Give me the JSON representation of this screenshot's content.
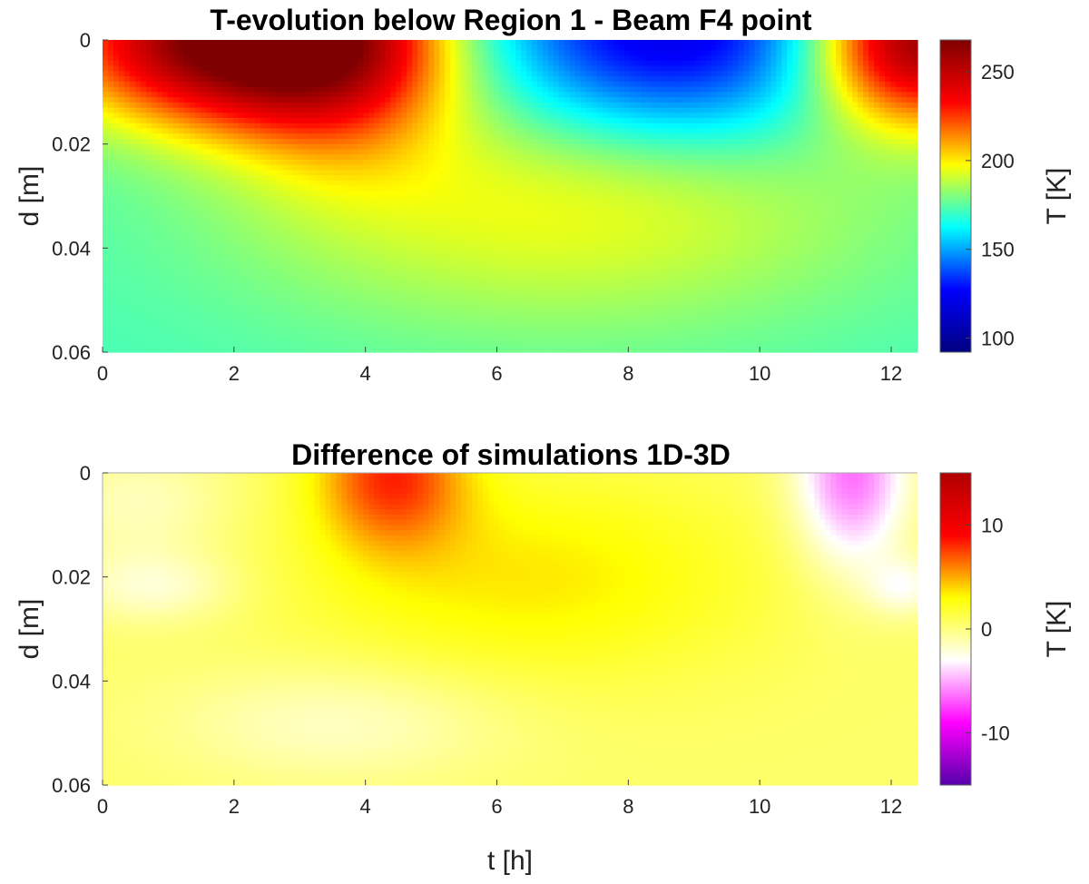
{
  "chart_data": [
    {
      "type": "heatmap",
      "title": "T-evolution below Region 1 - Beam F4 point",
      "xlabel": "",
      "ylabel": "d [m]",
      "colorbar_label": "T [K]",
      "xlim": [
        0,
        12.4
      ],
      "ylim": [
        0,
        0.06
      ],
      "y_reversed": true,
      "x_ticks": [
        0,
        2,
        4,
        6,
        8,
        10,
        12
      ],
      "x_tick_labels": [
        "0",
        "2",
        "4",
        "6",
        "8",
        "10",
        "12"
      ],
      "y_ticks": [
        0,
        0.02,
        0.04,
        0.06
      ],
      "y_tick_labels": [
        "0",
        "0.02",
        "0.04",
        "0.06"
      ],
      "clim": [
        92,
        268
      ],
      "colorbar_ticks": [
        100,
        150,
        200,
        250
      ],
      "colorbar_tick_labels": [
        "100",
        "150",
        "200",
        "250"
      ],
      "colormap": "jet",
      "colormap_stops": [
        "#00007f",
        "#0000ff",
        "#00ffff",
        "#ffff00",
        "#ff0000",
        "#7f0000"
      ],
      "background_value": 172,
      "features": [
        {
          "t_center": 2.0,
          "d_center": 0.0,
          "t_spread": 1.8,
          "d_spread": 0.011,
          "value": 98,
          "shape": "gauss"
        },
        {
          "t_center": 3.6,
          "d_center": 0.0,
          "t_spread": 1.2,
          "d_spread": 0.016,
          "value": 42,
          "shape": "gauss"
        },
        {
          "t_center": 8.6,
          "d_center": 0.0,
          "t_spread": 2.0,
          "d_spread": 0.014,
          "value": -55,
          "shape": "gauss"
        },
        {
          "t_center": 12.4,
          "d_center": 0.0,
          "t_spread": 1.1,
          "d_spread": 0.011,
          "value": 92,
          "shape": "gauss"
        },
        {
          "t_center": 7.0,
          "d_center": 0.03,
          "t_spread": 3.5,
          "d_spread": 0.018,
          "value": 25,
          "shape": "gauss"
        }
      ]
    },
    {
      "type": "heatmap",
      "title": "Difference of simulations 1D-3D",
      "xlabel": "t [h]",
      "ylabel": "d [m]",
      "colorbar_label": "T [K]",
      "xlim": [
        0,
        12.4
      ],
      "ylim": [
        0,
        0.06
      ],
      "y_reversed": true,
      "x_ticks": [
        0,
        2,
        4,
        6,
        8,
        10,
        12
      ],
      "x_tick_labels": [
        "0",
        "2",
        "4",
        "6",
        "8",
        "10",
        "12"
      ],
      "y_ticks": [
        0,
        0.02,
        0.04,
        0.06
      ],
      "y_tick_labels": [
        "0",
        "0.02",
        "0.04",
        "0.06"
      ],
      "clim": [
        -15,
        15
      ],
      "colorbar_ticks": [
        -10,
        0,
        10
      ],
      "colorbar_tick_labels": [
        "-10",
        "0",
        "10"
      ],
      "colormap": "diverging",
      "colormap_stops": [
        "#5500aa",
        "#ff00ff",
        "#ffffff",
        "#ffff00",
        "#ff0000",
        "#b00000"
      ],
      "background_value": 0.5,
      "features": [
        {
          "t_center": 4.4,
          "d_center": 0.0,
          "t_spread": 0.8,
          "d_spread": 0.01,
          "value": 7,
          "shape": "gauss"
        },
        {
          "t_center": 6.5,
          "d_center": 0.02,
          "t_spread": 2.5,
          "d_spread": 0.014,
          "value": 3,
          "shape": "gauss"
        },
        {
          "t_center": 11.4,
          "d_center": 0.0,
          "t_spread": 0.6,
          "d_spread": 0.013,
          "value": -7,
          "shape": "gauss"
        },
        {
          "t_center": 12.2,
          "d_center": 0.022,
          "t_spread": 0.4,
          "d_spread": 0.004,
          "value": -3,
          "shape": "gauss"
        },
        {
          "t_center": 0.8,
          "d_center": 0.022,
          "t_spread": 0.9,
          "d_spread": 0.005,
          "value": -2.5,
          "shape": "gauss"
        },
        {
          "t_center": 3.6,
          "d_center": 0.048,
          "t_spread": 1.8,
          "d_spread": 0.008,
          "value": -2.2,
          "shape": "gauss"
        },
        {
          "t_center": 0.6,
          "d_center": 0.006,
          "t_spread": 1.0,
          "d_spread": 0.008,
          "value": -2.0,
          "shape": "gauss"
        }
      ]
    }
  ]
}
